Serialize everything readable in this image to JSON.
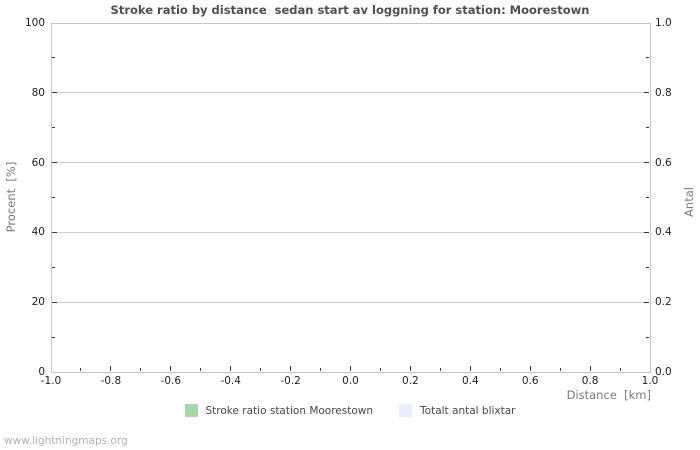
{
  "page": {
    "watermark": "www.lightningmaps.org"
  },
  "chart_data": {
    "type": "bar",
    "title": "Stroke ratio by distance  sedan start av loggning for station: Moorestown",
    "xlabel": "Distance  [km]",
    "ylabel_left": "Procent  [%]",
    "ylabel_right": "Antal",
    "xlim": [
      -1.0,
      1.0
    ],
    "ylim_left": [
      0,
      100
    ],
    "ylim_right": [
      0.0,
      1.0
    ],
    "x_tick_labels": [
      "-1.0",
      "-0.8",
      "-0.6",
      "-0.4",
      "-0.2",
      "0.0",
      "0.2",
      "0.4",
      "0.6",
      "0.8",
      "1.0"
    ],
    "y_left_tick_labels": [
      "0",
      "20",
      "40",
      "60",
      "80",
      "100"
    ],
    "y_right_tick_labels": [
      "0.0",
      "0.2",
      "0.4",
      "0.6",
      "0.8",
      "1.0"
    ],
    "grid": "horizontal-major-only",
    "legend_position": "bottom-center",
    "series": [
      {
        "name": "Stroke ratio station Moorestown",
        "color": "#a9d6a9",
        "values": []
      },
      {
        "name": "Totalt antal blixtar",
        "color": "#ecedfb",
        "values": []
      }
    ],
    "colors": {
      "axis_border": "#c6c6c6",
      "gridline": "#cfcfcf",
      "tick_mark": "#3a3a3a",
      "title_text": "#4f4f4f",
      "axis_label_text": "#7a7a7a",
      "tick_label_text": "#1e1e1e",
      "watermark_text": "#b2b2b2"
    }
  }
}
